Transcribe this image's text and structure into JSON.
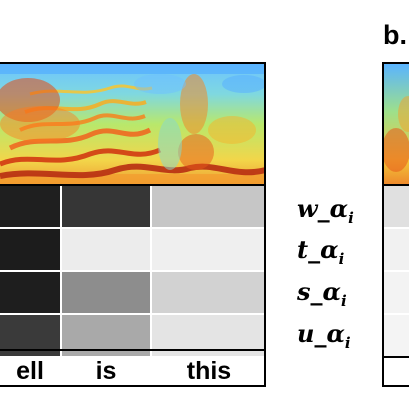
{
  "panel_a": {
    "words": [
      "ell",
      "is",
      "this"
    ],
    "weight_rows": [
      {
        "label_base": "w_α",
        "label_sub": "i",
        "cells": [
          "#1f1f1f",
          "#363636",
          "#c6c6c6"
        ]
      },
      {
        "label_base": "t_α",
        "label_sub": "i",
        "cells": [
          "#1c1c1c",
          "#ececec",
          "#efefef"
        ]
      },
      {
        "label_base": "s_α",
        "label_sub": "i",
        "cells": [
          "#1e1e1e",
          "#8d8d8d",
          "#d2d2d2"
        ]
      },
      {
        "label_base": "u_α",
        "label_sub": "i",
        "cells": [
          "#3a3a3a",
          "#a9a9a9",
          "#e4e4e4"
        ]
      }
    ]
  },
  "panel_b": {
    "title": "b.",
    "cells": [
      "#e0e0e0",
      "#f1f1f1",
      "#f3f3f3",
      "#f4f4f4"
    ]
  },
  "colors": {
    "spectrogram_background": "#3fa0ff",
    "spectrogram_low": "#5fc8f0",
    "spectrogram_mid": "#a8e060",
    "spectrogram_high": "#ffd23a",
    "spectrogram_peak": "#e03a10"
  }
}
